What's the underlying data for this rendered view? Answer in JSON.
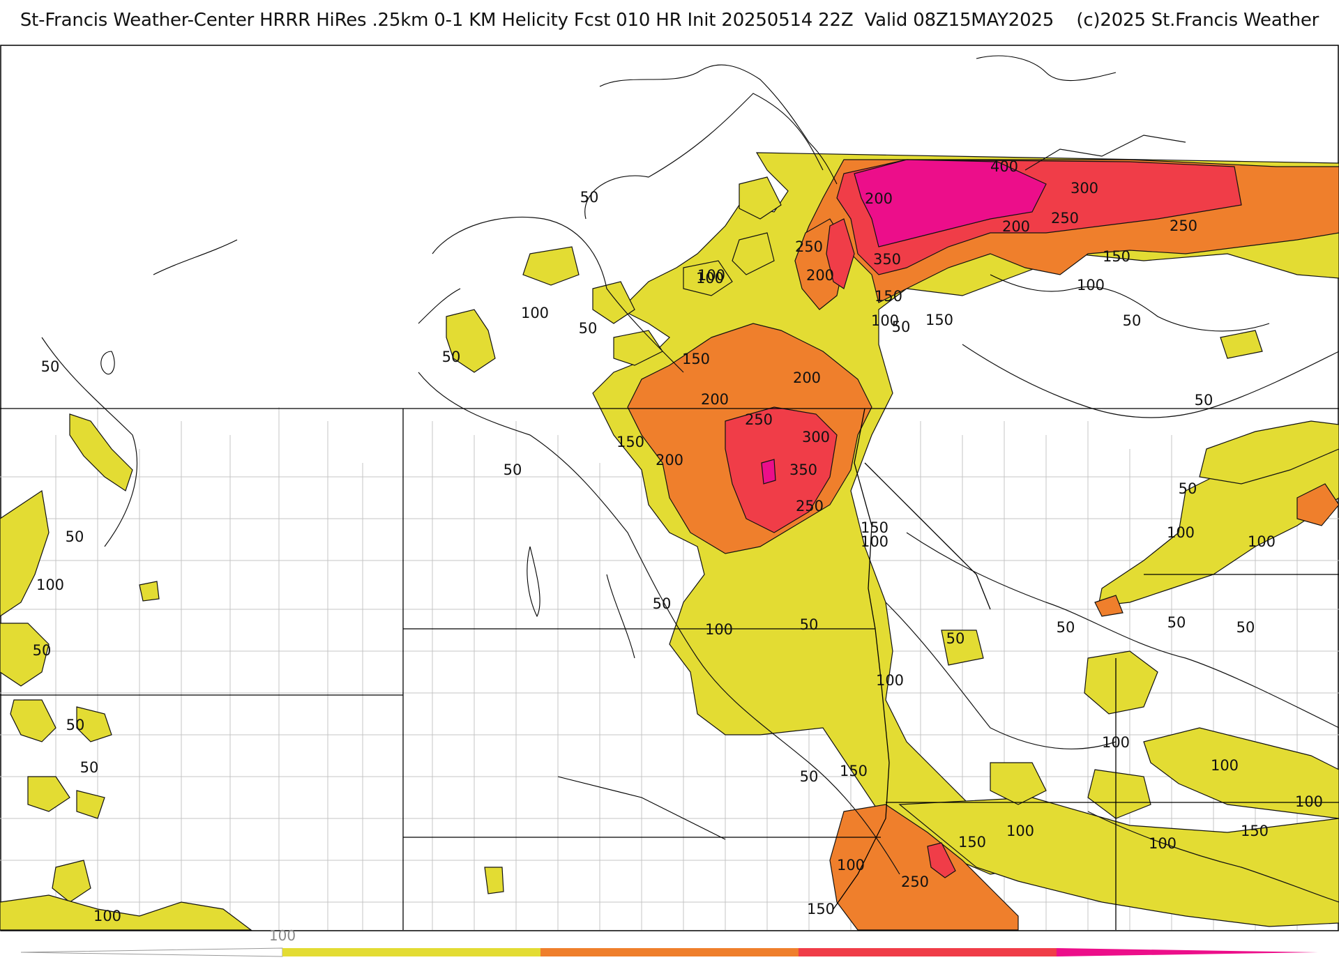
{
  "header": {
    "title": "St-Francis Weather-Center HRRR HiRes .25km 0-1 KM Helicity Fcst 010 HR Init 20250514 22Z  Valid 08Z15MAY2025    (c)2025 St.Francis Weather"
  },
  "colors": {
    "bg": "#ffffff",
    "band_50_150": "#e3dc33",
    "band_150_250": "#ef7f2c",
    "band_250_350": "#f03d48",
    "band_350_up": "#ec0e8a",
    "border": "#000000",
    "county": "#bbbbbb"
  },
  "contour_labels": [
    {
      "v": "50"
    },
    {
      "v": "50"
    },
    {
      "v": "50"
    },
    {
      "v": "50"
    },
    {
      "v": "50"
    },
    {
      "v": "50"
    },
    {
      "v": "50"
    },
    {
      "v": "50"
    },
    {
      "v": "50"
    },
    {
      "v": "50"
    },
    {
      "v": "50"
    },
    {
      "v": "50"
    },
    {
      "v": "50"
    },
    {
      "v": "50"
    },
    {
      "v": "50"
    },
    {
      "v": "50"
    },
    {
      "v": "50"
    },
    {
      "v": "50"
    },
    {
      "v": "50"
    },
    {
      "v": "50"
    },
    {
      "v": "100"
    },
    {
      "v": "100"
    },
    {
      "v": "100"
    },
    {
      "v": "100"
    },
    {
      "v": "100"
    },
    {
      "v": "100"
    },
    {
      "v": "100"
    },
    {
      "v": "100"
    },
    {
      "v": "100"
    },
    {
      "v": "100"
    },
    {
      "v": "100"
    },
    {
      "v": "100"
    },
    {
      "v": "100"
    },
    {
      "v": "100"
    },
    {
      "v": "100"
    },
    {
      "v": "100"
    },
    {
      "v": "100"
    },
    {
      "v": "100"
    },
    {
      "v": "150"
    },
    {
      "v": "150"
    },
    {
      "v": "150"
    },
    {
      "v": "150"
    },
    {
      "v": "150"
    },
    {
      "v": "150"
    },
    {
      "v": "150"
    },
    {
      "v": "150"
    },
    {
      "v": "150"
    },
    {
      "v": "150"
    },
    {
      "v": "200"
    },
    {
      "v": "200"
    },
    {
      "v": "200"
    },
    {
      "v": "200"
    },
    {
      "v": "200"
    },
    {
      "v": "200"
    },
    {
      "v": "250"
    },
    {
      "v": "250"
    },
    {
      "v": "250"
    },
    {
      "v": "250"
    },
    {
      "v": "250"
    },
    {
      "v": "250"
    },
    {
      "v": "300"
    },
    {
      "v": "300"
    },
    {
      "v": "350"
    },
    {
      "v": "350"
    },
    {
      "v": "400"
    }
  ],
  "legend": {
    "tick_label": "100"
  }
}
